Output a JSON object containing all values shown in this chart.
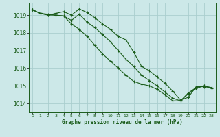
{
  "title": "Graphe pression niveau de la mer (hPa)",
  "bg_color": "#cce8e8",
  "grid_color": "#aacece",
  "line_color": "#1a5c1a",
  "xlim": [
    -0.5,
    23.5
  ],
  "ylim": [
    1013.5,
    1019.7
  ],
  "yticks": [
    1014,
    1015,
    1016,
    1017,
    1018,
    1019
  ],
  "xticks": [
    0,
    1,
    2,
    3,
    4,
    5,
    6,
    7,
    8,
    9,
    10,
    11,
    12,
    13,
    14,
    15,
    16,
    17,
    18,
    19,
    20,
    21,
    22,
    23
  ],
  "series": [
    [
      1019.3,
      1019.1,
      1019.0,
      1019.1,
      1019.2,
      1019.0,
      1019.35,
      1019.15,
      1018.85,
      1018.5,
      1018.2,
      1017.8,
      1017.6,
      1016.9,
      1016.1,
      1015.85,
      1015.5,
      1015.15,
      1014.7,
      1014.2,
      1014.35,
      1014.95,
      1014.95,
      1014.9
    ],
    [
      1019.3,
      1019.1,
      1019.05,
      1019.0,
      1018.95,
      1018.7,
      1019.05,
      1018.6,
      1018.3,
      1017.9,
      1017.5,
      1017.0,
      1016.5,
      1016.1,
      1015.6,
      1015.3,
      1015.0,
      1014.65,
      1014.3,
      1014.15,
      1014.55,
      1014.85,
      1015.0,
      1014.9
    ],
    [
      1019.3,
      1019.1,
      1019.0,
      1019.0,
      1018.95,
      1018.5,
      1018.2,
      1017.8,
      1017.3,
      1016.8,
      1016.4,
      1016.0,
      1015.6,
      1015.25,
      1015.1,
      1015.0,
      1014.8,
      1014.5,
      1014.15,
      1014.15,
      1014.6,
      1014.9,
      1015.0,
      1014.85
    ]
  ]
}
